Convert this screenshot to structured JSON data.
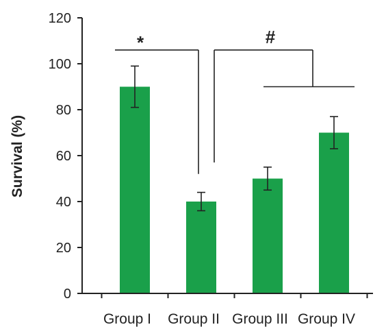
{
  "chart_data": {
    "type": "bar",
    "categories": [
      "Group I",
      "Group II",
      "Group III",
      "Group IV"
    ],
    "values": [
      90,
      40,
      50,
      70
    ],
    "errors": [
      9,
      4,
      5,
      7
    ],
    "ylabel": "Survival (%)",
    "ylim": [
      0,
      120
    ],
    "yticks": [
      0,
      20,
      40,
      60,
      80,
      100,
      120
    ],
    "grid": false,
    "legend": "none",
    "bar_color": "#1aa04a",
    "significance": [
      {
        "label": "*",
        "from": "Group I",
        "to": "Group II"
      },
      {
        "label": "#",
        "from": "Group II",
        "to": [
          "Group III",
          "Group IV"
        ]
      }
    ]
  }
}
